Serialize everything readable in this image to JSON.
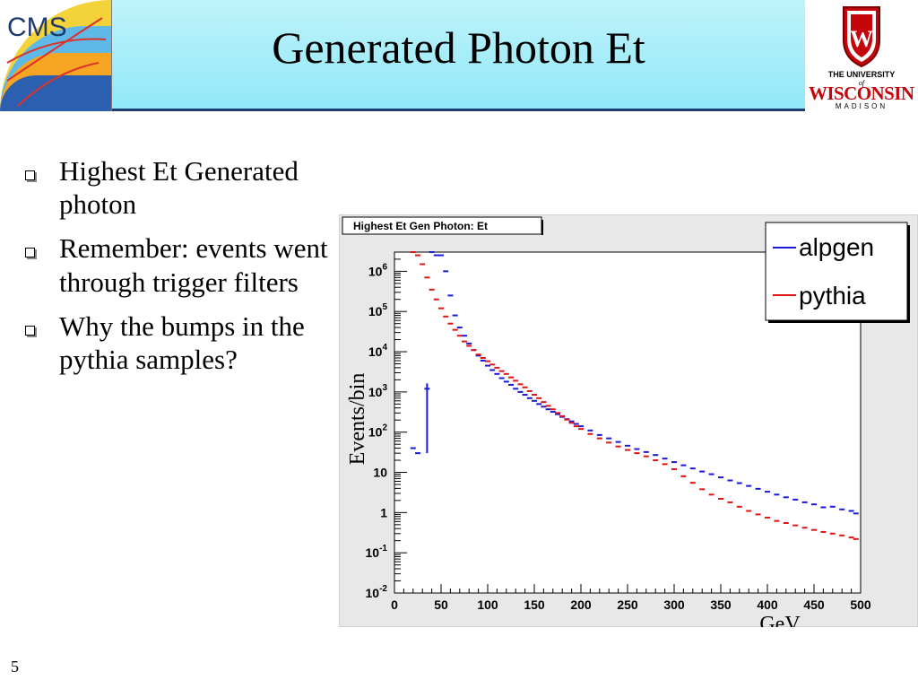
{
  "slide": {
    "title": "Generated Photon Et",
    "page_number": "5",
    "bullets": [
      "Highest Et Generated photon",
      "Remember: events went through trigger filters",
      "Why the bumps in the pythia samples?"
    ]
  },
  "logos": {
    "cms_text": "CMS",
    "uw_top": "THE UNIVERSITY",
    "uw_of": "of",
    "uw_main": "WISCONSIN",
    "uw_sub": "MADISON"
  },
  "colors": {
    "alpgen": "#1a1ad6",
    "pythia": "#e01414",
    "header_accent": "#1f3a6e"
  },
  "chart_data": {
    "type": "line",
    "title": "Highest Et Gen Photon: Et",
    "xlabel": "GeV",
    "ylabel": "Events/bin",
    "xlim": [
      0,
      500
    ],
    "ylim": [
      0.01,
      3000000
    ],
    "yscale": "log",
    "x_ticks": [
      0,
      50,
      100,
      150,
      200,
      250,
      300,
      350,
      400,
      450,
      500
    ],
    "y_ticks": [
      {
        "value": 0.01,
        "base": "10",
        "exp": "-2"
      },
      {
        "value": 0.1,
        "base": "10",
        "exp": "-1"
      },
      {
        "value": 1,
        "base": "1",
        "exp": ""
      },
      {
        "value": 10,
        "base": "10",
        "exp": ""
      },
      {
        "value": 100,
        "base": "10",
        "exp": "2"
      },
      {
        "value": 1000,
        "base": "10",
        "exp": "3"
      },
      {
        "value": 10000,
        "base": "10",
        "exp": "4"
      },
      {
        "value": 100000,
        "base": "10",
        "exp": "5"
      },
      {
        "value": 1000000,
        "base": "10",
        "exp": "6"
      }
    ],
    "legend_position": "top-right",
    "series": [
      {
        "name": "alpgen",
        "color": "#1a1ad6",
        "points": [
          [
            20,
            40
          ],
          [
            25,
            30
          ],
          [
            35,
            1200
          ],
          [
            40,
            3000000
          ],
          [
            45,
            2500000
          ],
          [
            50,
            2500000
          ],
          [
            55,
            1000000
          ],
          [
            60,
            250000
          ],
          [
            65,
            80000
          ],
          [
            70,
            40000
          ],
          [
            75,
            25000
          ],
          [
            80,
            16000
          ],
          [
            85,
            11000
          ],
          [
            90,
            8000
          ],
          [
            95,
            6000
          ],
          [
            100,
            4500
          ],
          [
            105,
            3500
          ],
          [
            110,
            2800
          ],
          [
            115,
            2200
          ],
          [
            120,
            1800
          ],
          [
            125,
            1500
          ],
          [
            130,
            1200
          ],
          [
            135,
            1000
          ],
          [
            140,
            850
          ],
          [
            145,
            700
          ],
          [
            150,
            600
          ],
          [
            155,
            500
          ],
          [
            160,
            430
          ],
          [
            165,
            370
          ],
          [
            170,
            320
          ],
          [
            175,
            280
          ],
          [
            180,
            240
          ],
          [
            185,
            210
          ],
          [
            190,
            185
          ],
          [
            195,
            160
          ],
          [
            200,
            140
          ],
          [
            210,
            110
          ],
          [
            220,
            85
          ],
          [
            230,
            70
          ],
          [
            240,
            57
          ],
          [
            250,
            46
          ],
          [
            260,
            38
          ],
          [
            270,
            32
          ],
          [
            280,
            27
          ],
          [
            290,
            22
          ],
          [
            300,
            18
          ],
          [
            310,
            15
          ],
          [
            320,
            12.5
          ],
          [
            330,
            10.5
          ],
          [
            340,
            9
          ],
          [
            350,
            7.5
          ],
          [
            360,
            6.3
          ],
          [
            370,
            5.4
          ],
          [
            380,
            4.6
          ],
          [
            390,
            3.9
          ],
          [
            400,
            3.3
          ],
          [
            410,
            2.8
          ],
          [
            420,
            2.4
          ],
          [
            430,
            2.1
          ],
          [
            440,
            1.8
          ],
          [
            450,
            1.6
          ],
          [
            460,
            1.35
          ],
          [
            470,
            1.4
          ],
          [
            480,
            1.2
          ],
          [
            490,
            1.1
          ],
          [
            495,
            0.95
          ]
        ]
      },
      {
        "name": "pythia",
        "color": "#e01414",
        "points": [
          [
            20,
            3000000
          ],
          [
            25,
            2500000
          ],
          [
            30,
            1500000
          ],
          [
            35,
            700000
          ],
          [
            40,
            350000
          ],
          [
            45,
            200000
          ],
          [
            50,
            120000
          ],
          [
            55,
            75000
          ],
          [
            60,
            50000
          ],
          [
            65,
            35000
          ],
          [
            70,
            25000
          ],
          [
            75,
            18000
          ],
          [
            80,
            14000
          ],
          [
            85,
            11000
          ],
          [
            90,
            8500
          ],
          [
            95,
            7000
          ],
          [
            100,
            5800
          ],
          [
            105,
            4800
          ],
          [
            110,
            4000
          ],
          [
            115,
            3300
          ],
          [
            120,
            2800
          ],
          [
            125,
            2300
          ],
          [
            130,
            1900
          ],
          [
            135,
            1550
          ],
          [
            140,
            1300
          ],
          [
            145,
            1050
          ],
          [
            150,
            850
          ],
          [
            155,
            700
          ],
          [
            160,
            560
          ],
          [
            165,
            450
          ],
          [
            170,
            370
          ],
          [
            175,
            300
          ],
          [
            180,
            250
          ],
          [
            185,
            205
          ],
          [
            190,
            170
          ],
          [
            195,
            140
          ],
          [
            200,
            120
          ],
          [
            210,
            90
          ],
          [
            220,
            70
          ],
          [
            230,
            55
          ],
          [
            240,
            44
          ],
          [
            250,
            36
          ],
          [
            260,
            30
          ],
          [
            270,
            25
          ],
          [
            280,
            20
          ],
          [
            290,
            16
          ],
          [
            300,
            12
          ],
          [
            310,
            8
          ],
          [
            320,
            5.5
          ],
          [
            330,
            3.8
          ],
          [
            340,
            2.8
          ],
          [
            350,
            2.2
          ],
          [
            360,
            1.8
          ],
          [
            370,
            1.4
          ],
          [
            380,
            1.1
          ],
          [
            390,
            0.9
          ],
          [
            400,
            0.75
          ],
          [
            410,
            0.62
          ],
          [
            420,
            0.55
          ],
          [
            430,
            0.48
          ],
          [
            440,
            0.42
          ],
          [
            450,
            0.37
          ],
          [
            460,
            0.33
          ],
          [
            470,
            0.3
          ],
          [
            480,
            0.27
          ],
          [
            490,
            0.24
          ],
          [
            495,
            0.22
          ]
        ]
      }
    ]
  }
}
